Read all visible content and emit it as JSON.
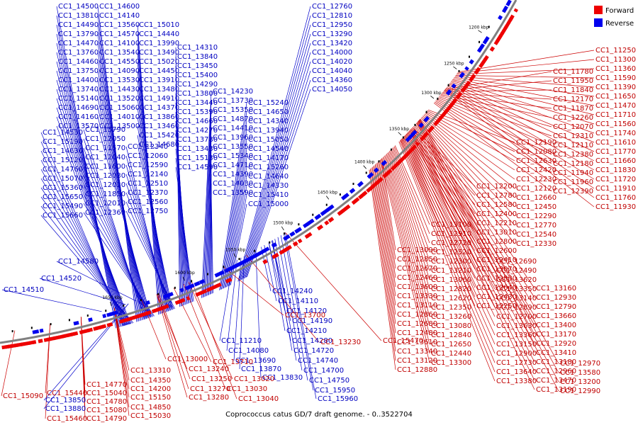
{
  "caption": "Coprococcus catus GD/7 draft genome. - 0..3522704",
  "legend": [
    {
      "label": "Forward",
      "color": "#ee0000"
    },
    {
      "label": "Reverse",
      "color": "#0000ee"
    }
  ],
  "colors": {
    "forward": "#ee0000",
    "reverse": "#0000ee",
    "backbone": "#808080",
    "forward_line": "#cc0000",
    "reverse_line": "#0000cc"
  },
  "kbp_ticks": [
    "1200 kbp",
    "1250 kbp",
    "1300 kbp",
    "1350 kbp",
    "1400 kbp",
    "1450 kbp",
    "1500 kbp",
    "1550 kbp",
    "1600 kbp",
    "1650 kbp"
  ],
  "reverse_labels": [
    "CC1_14500",
    "CC1_13810",
    "CC1_14490",
    "CC1_13790",
    "CC1_14470",
    "CC1_13760",
    "CC1_14460",
    "CC1_13750",
    "CC1_14400",
    "CC1_13740",
    "CC1_15140",
    "CC1_14690",
    "CC1_14160",
    "CC1_13570",
    "CC1_14600",
    "CC1_14140",
    "CC1_13560",
    "CC1_14570",
    "CC1_14100",
    "CC1_13540",
    "CC1_14550",
    "CC1_14090",
    "CC1_13530",
    "CC1_14430",
    "CC1_13520",
    "CC1_15060",
    "CC1_14010",
    "CC1_13500",
    "CC1_15010",
    "CC1_14440",
    "CC1_13990",
    "CC1_13490",
    "CC1_15020",
    "CC1_14450",
    "CC1_13910",
    "CC1_13480",
    "CC1_14910",
    "CC1_14370",
    "CC1_13860",
    "CC1_13460",
    "CC1_15420",
    "CC1_14680",
    "CC1_14310",
    "CC1_13840",
    "CC1_13450",
    "CC1_15400",
    "CC1_14290",
    "CC1_13800",
    "CC1_13440",
    "CC1_15390",
    "CC1_14660",
    "CC1_14270",
    "CC1_13780",
    "CC1_13430",
    "CC1_15130",
    "CC1_14590",
    "CC1_14230",
    "CC1_13730",
    "CC1_15350",
    "CC1_14870",
    "CC1_14410",
    "CC1_13960",
    "CC1_13550",
    "CC1_15340",
    "CC1_14710",
    "CC1_14390",
    "CC1_14030",
    "CC1_13590",
    "CC1_15240",
    "CC1_14650",
    "CC1_14340",
    "CC1_13940",
    "CC1_15050",
    "CC1_14540",
    "CC1_14170",
    "CC1_15260",
    "CC1_14640",
    "CC1_14330",
    "CC1_15410",
    "CC1_15000",
    "CC1_14530",
    "CC1_15190",
    "CC1_14630",
    "CC1_15120",
    "CC1_14760",
    "CC1_15070",
    "CC1_15360",
    "CC1_15650",
    "CC1_15490",
    "CC1_15660",
    "CC1_15790",
    "CC1_12050",
    "CC1_11570",
    "CC1_12040",
    "CC1_11600",
    "CC1_12030",
    "CC1_12020",
    "CC1_11850",
    "CC1_12010",
    "CC1_12360",
    "CC1_12340",
    "CC1_12060",
    "CC1_12590",
    "CC1_12140",
    "CC1_12510",
    "CC1_12370",
    "CC1_12560",
    "CC1_12750",
    "CC1_12760",
    "CC1_12810",
    "CC1_12950",
    "CC1_13290",
    "CC1_13420",
    "CC1_14000",
    "CC1_14020",
    "CC1_14040",
    "CC1_14360",
    "CC1_14050",
    "CC1_14510",
    "CC1_14520",
    "CC1_14580",
    "CC1_14240",
    "CC1_14110",
    "CC1_14120",
    "CC1_14190",
    "CC1_14210",
    "CC1_14280",
    "CC1_14720",
    "CC1_14740",
    "CC1_14700",
    "CC1_14750",
    "CC1_15950",
    "CC1_15960",
    "CC1_11210",
    "CC1_14080",
    "CC1_13690",
    "CC1_13870",
    "CC1_13830",
    "CC1_13850",
    "CC1_13880"
  ],
  "forward_labels": [
    "CC1_11250",
    "CC1_11300",
    "CC1_11360",
    "CC1_11590",
    "CC1_11390",
    "CC1_11650",
    "CC1_11470",
    "CC1_11710",
    "CC1_11560",
    "CC1_11740",
    "CC1_11610",
    "CC1_11770",
    "CC1_11660",
    "CC1_11830",
    "CC1_11720",
    "CC1_11910",
    "CC1_11760",
    "CC1_11930",
    "CC1_11780",
    "CC1_11950",
    "CC1_11840",
    "CC1_12170",
    "CC1_11870",
    "CC1_12260",
    "CC1_12070",
    "CC1_12310",
    "CC1_12110",
    "CC1_12380",
    "CC1_12180",
    "CC1_11940",
    "CC1_11960",
    "CC1_12390",
    "CC1_12190",
    "CC1_12080",
    "CC1_12630",
    "CC1_12420",
    "CC1_12230",
    "CC1_12120",
    "CC1_12660",
    "CC1_12450",
    "CC1_12290",
    "CC1_12770",
    "CC1_12540",
    "CC1_12330",
    "CC1_12200",
    "CC1_12780",
    "CC1_12580",
    "CC1_12400",
    "CC1_12210",
    "CC1_13010",
    "CC1_12800",
    "CC1_12600",
    "CC1_12410",
    "CC1_13070",
    "CC1_12830",
    "CC1_12640",
    "CC1_12430",
    "CC1_12250",
    "CC1_13100",
    "CC1_12910",
    "CC1_12720",
    "CC1_12520",
    "CC1_12300",
    "CC1_13210",
    "CC1_13060",
    "CC1_12820",
    "CC1_12620",
    "CC1_12350",
    "CC1_13260",
    "CC1_13080",
    "CC1_12840",
    "CC1_12650",
    "CC1_12440",
    "CC1_13300",
    "CC1_13090",
    "CC1_12850",
    "CC1_12670",
    "CC1_12460",
    "CC1_13600",
    "CC1_13330",
    "CC1_13110",
    "CC1_12860",
    "CC1_12680",
    "CC1_12480",
    "CC1_13610",
    "CC1_13340",
    "CC1_13120",
    "CC1_12880",
    "CC1_12690",
    "CC1_12490",
    "CC1_13620",
    "CC1_13350",
    "CC1_13140",
    "CC1_12890",
    "CC1_12700",
    "CC1_13630",
    "CC1_13360",
    "CC1_13150",
    "CC1_12900",
    "CC1_12730",
    "CC1_13640",
    "CC1_13380",
    "CC1_13160",
    "CC1_12930",
    "CC1_12790",
    "CC1_13660",
    "CC1_13400",
    "CC1_13170",
    "CC1_12920",
    "CC1_13410",
    "CC1_13180",
    "CC1_12960",
    "CC1_13470",
    "CC1_13190",
    "CC1_12970",
    "CC1_13580",
    "CC1_13200",
    "CC1_12990",
    "CC1_13700",
    "CC1_13230",
    "CC1_13000",
    "CC1_13710",
    "CC1_13240",
    "CC1_13020",
    "CC1_13250",
    "CC1_13030",
    "CC1_13270",
    "CC1_13040",
    "CC1_13280",
    "CC1_13310",
    "CC1_14350",
    "CC1_14200",
    "CC1_15150",
    "CC1_14850",
    "CC1_15030",
    "CC1_14770",
    "CC1_15040",
    "CC1_14780",
    "CC1_15080",
    "CC1_14790",
    "CC1_15090",
    "CC1_15440",
    "CC1_15460",
    "CC1_15470",
    "CC1_15480",
    "CC1_15500",
    "CC1_15510",
    "CC1_15670",
    "CC1_15680",
    "CC1_15710",
    "CC1_15720",
    "CC1_15730",
    "CC1_16210",
    "CC1_15940",
    "CC1_15970",
    "CC1_13820"
  ]
}
